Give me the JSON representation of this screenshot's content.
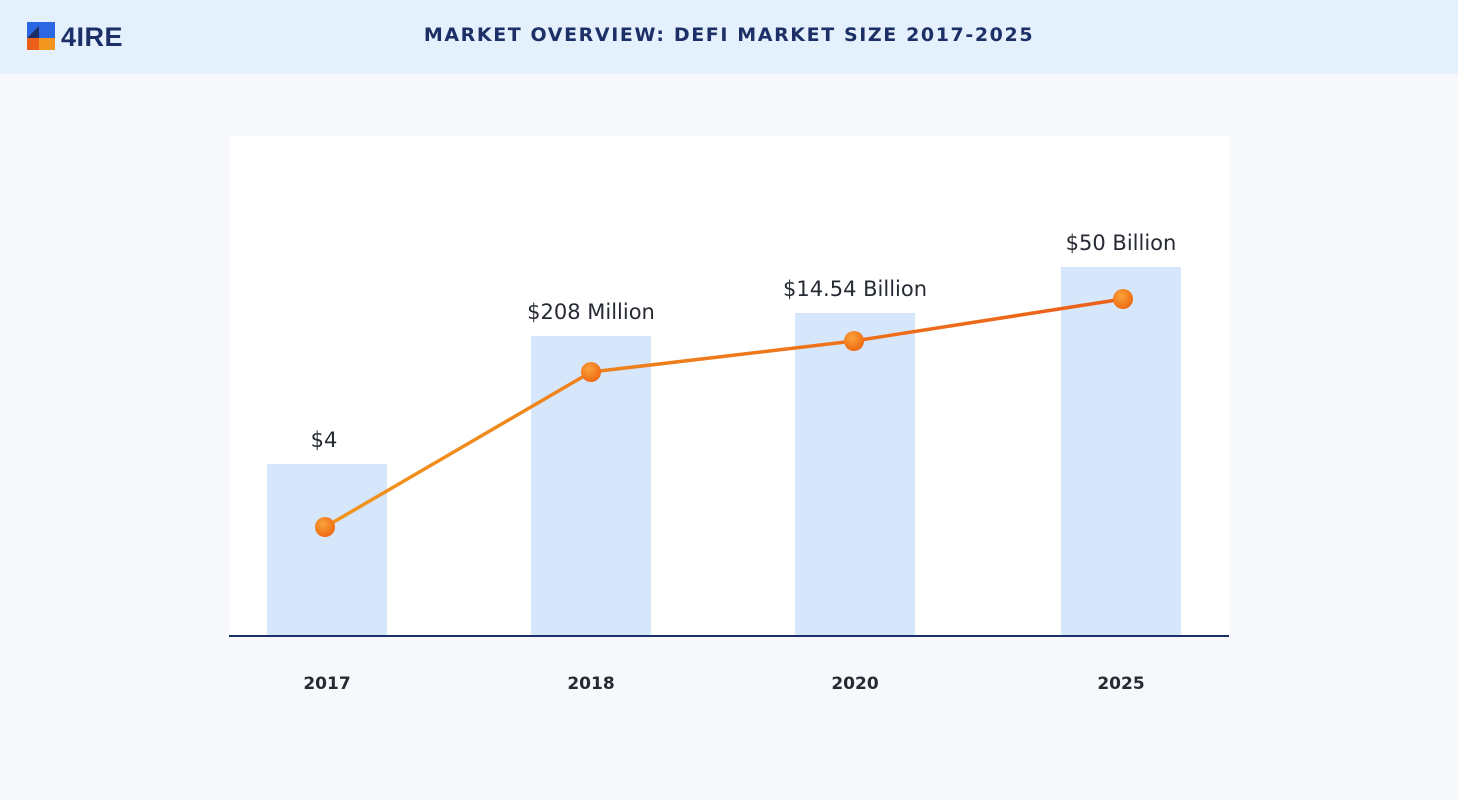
{
  "header": {
    "logo_text": "4IRE",
    "title": "MARKET OVERVIEW: DEFI MARKET SIZE 2017-2025"
  },
  "colors": {
    "background": "#f6f8fc",
    "header_background": "#e5f0fd",
    "bar": "#d6e6fb",
    "line_start": "#f0951d",
    "line_end": "#ec5f1a",
    "axis": "#1c2f67"
  },
  "chart_data": {
    "type": "bar",
    "categories": [
      "2017",
      "2018",
      "2020",
      "2025"
    ],
    "data_labels": [
      "$4",
      "$208 Million",
      "$14.54 Billion",
      "$50 Billion"
    ],
    "bar_values": [
      172,
      300,
      323,
      369
    ],
    "line_values": [
      109,
      264,
      295,
      337
    ],
    "ylim": [
      0,
      500
    ],
    "grid": false,
    "title": "",
    "xlabel": "",
    "ylabel": ""
  }
}
